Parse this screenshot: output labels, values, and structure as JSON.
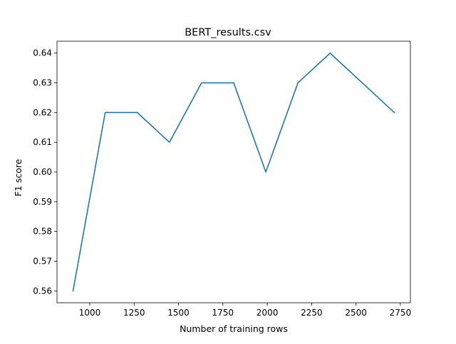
{
  "chart_data": {
    "type": "line",
    "title": "BERT_results.csv",
    "xlabel": "Number of training rows",
    "ylabel": "F1 score",
    "x": [
      906,
      1087,
      1268,
      1449,
      1630,
      1811,
      1992,
      2173,
      2354,
      2716
    ],
    "series": [
      {
        "values": [
          0.56,
          0.62,
          0.62,
          0.61,
          0.63,
          0.63,
          0.6,
          0.63,
          0.64,
          0.62
        ],
        "color": "#1f77b4"
      }
    ],
    "xlim": [
      815.5,
      2806.5
    ],
    "ylim": [
      0.556,
      0.644
    ],
    "xticks": [
      1000,
      1250,
      1500,
      1750,
      2000,
      2250,
      2500,
      2750
    ],
    "xtick_labels": [
      "1000",
      "1250",
      "1500",
      "1750",
      "2000",
      "2250",
      "2500",
      "2750"
    ],
    "yticks": [
      0.56,
      0.57,
      0.58,
      0.59,
      0.6,
      0.61,
      0.62,
      0.63,
      0.64
    ],
    "ytick_labels": [
      "0.56",
      "0.57",
      "0.58",
      "0.59",
      "0.60",
      "0.61",
      "0.62",
      "0.63",
      "0.64"
    ],
    "grid": false,
    "legend": "none"
  }
}
